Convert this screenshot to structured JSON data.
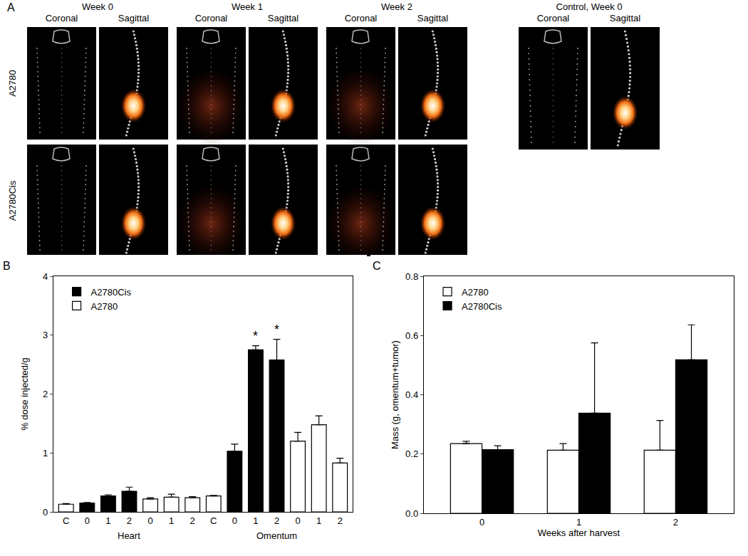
{
  "image_panel": {
    "label": "A",
    "rows": [
      "A2780",
      "A2780Cis"
    ],
    "columns": [
      {
        "title": "Week 0",
        "views": [
          "Coronal",
          "Sagittal"
        ]
      },
      {
        "title": "Week 1",
        "views": [
          "Coronal",
          "Sagittal"
        ]
      },
      {
        "title": "Week 2",
        "views": [
          "Coronal",
          "Sagittal"
        ]
      },
      {
        "title": "Control, Week 0",
        "views": [
          "Coronal",
          "Sagittal"
        ]
      }
    ]
  },
  "chart_data": [
    {
      "type": "bar",
      "panel_label": "B",
      "y_label": "% dose injected/g",
      "categories": [
        "C",
        "0",
        "1",
        "2",
        "0",
        "1",
        "2",
        "C",
        "0",
        "1",
        "2",
        "0",
        "1",
        "2"
      ],
      "groups": [
        {
          "name": "Heart",
          "size": 7
        },
        {
          "name": "Omentum",
          "size": 7
        }
      ],
      "series": [
        {
          "name": "A2780Cis",
          "color": "#000000",
          "values": [
            null,
            0.15,
            0.27,
            0.35,
            null,
            null,
            null,
            null,
            1.03,
            2.75,
            2.58,
            null,
            null,
            null
          ],
          "errors": [
            null,
            0.01,
            0.02,
            0.07,
            null,
            null,
            null,
            null,
            0.12,
            0.07,
            0.35,
            null,
            null,
            null
          ]
        },
        {
          "name": "A2780",
          "color": "#ffffff",
          "values": [
            0.13,
            null,
            null,
            null,
            0.22,
            0.25,
            0.24,
            0.27,
            null,
            null,
            null,
            1.2,
            1.48,
            0.83
          ],
          "errors": [
            0.01,
            null,
            null,
            null,
            0.02,
            0.05,
            0.02,
            0.01,
            null,
            null,
            null,
            0.15,
            0.15,
            0.08
          ]
        }
      ],
      "annotations": [
        {
          "text": "*",
          "category": 9
        },
        {
          "text": "*",
          "category": 10
        }
      ],
      "ylim": [
        0,
        4
      ],
      "yticks": [
        0,
        1,
        2,
        3,
        4
      ],
      "legend": "upper left"
    },
    {
      "type": "bar",
      "panel_label": "C",
      "x_label": "Weeks after harvest",
      "y_label": "Mass (g, omentum+tumor)",
      "categories": [
        "0",
        "1",
        "2"
      ],
      "series": [
        {
          "name": "A2780",
          "color": "#ffffff",
          "values": [
            0.235,
            0.213,
            0.213
          ],
          "errors": [
            0.008,
            0.022,
            0.1
          ]
        },
        {
          "name": "A2780Cis",
          "color": "#000000",
          "values": [
            0.215,
            0.338,
            0.518
          ],
          "errors": [
            0.013,
            0.237,
            0.118
          ]
        }
      ],
      "ylim": [
        0,
        0.8
      ],
      "yticks": [
        {
          "value": 0,
          "label": "0.0"
        },
        0.2,
        0.4,
        0.6,
        0.8
      ],
      "legend": "upper left"
    }
  ]
}
